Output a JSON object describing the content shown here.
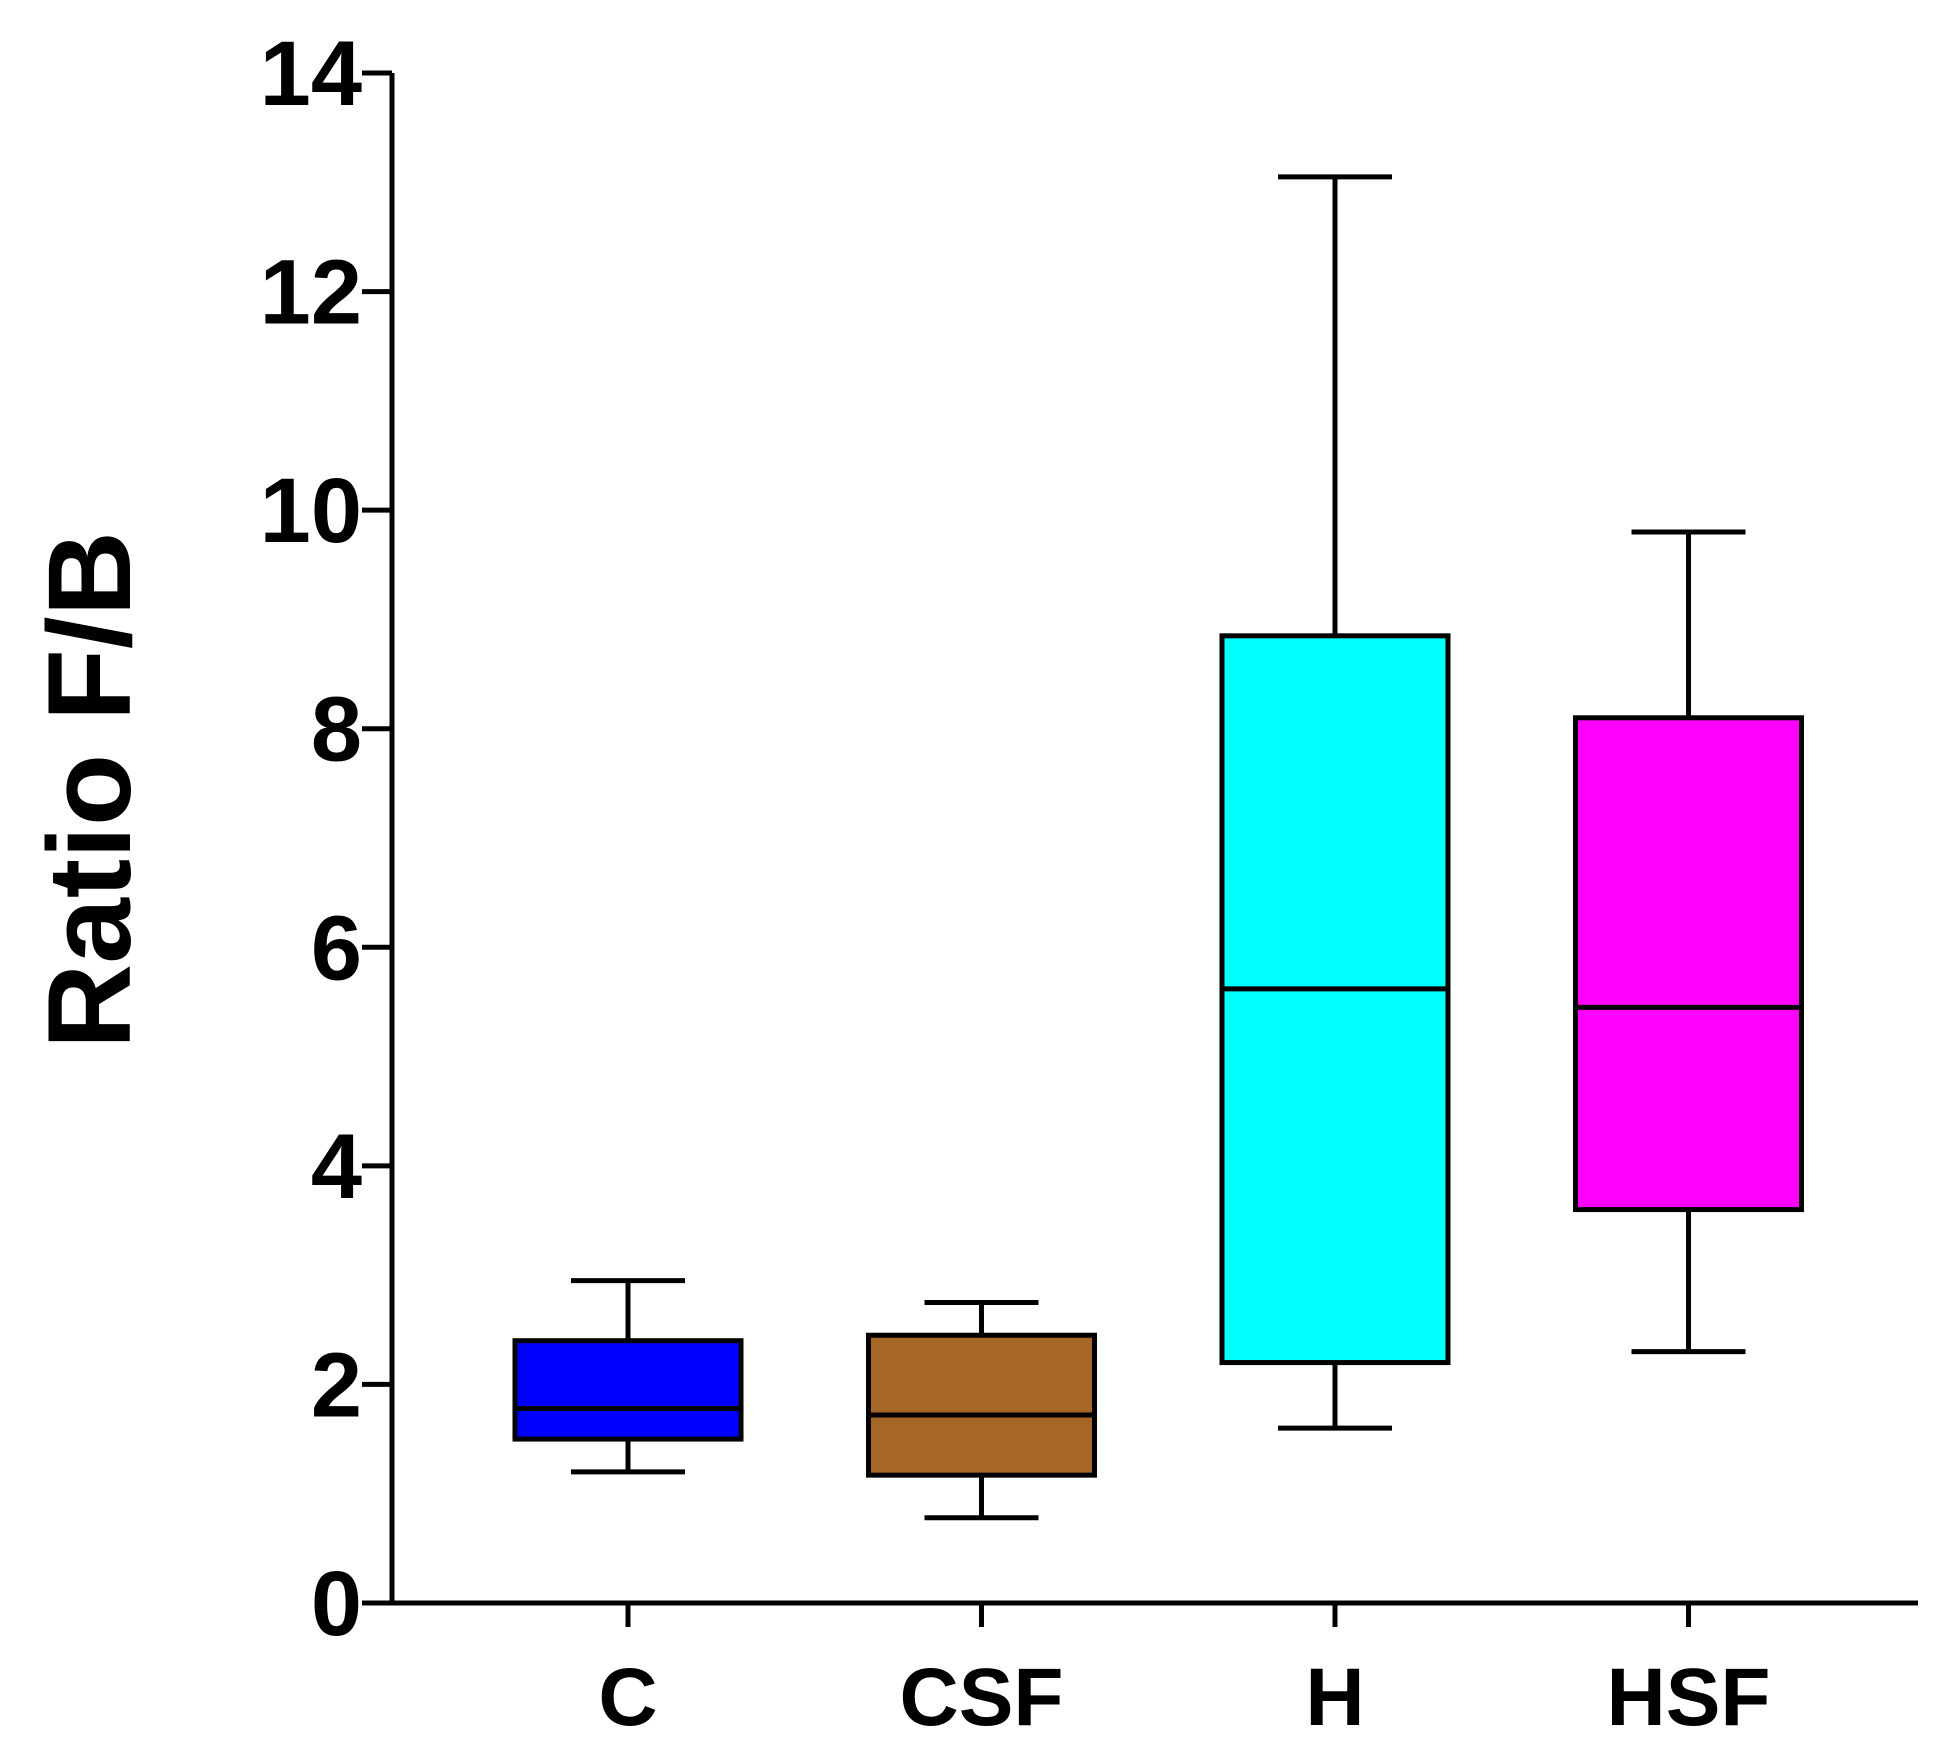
{
  "chart_data": {
    "type": "box",
    "title": "",
    "xlabel": "",
    "ylabel": "Ratio F/B",
    "ylim": [
      0,
      14
    ],
    "yticks": [
      0,
      2,
      4,
      6,
      8,
      10,
      12,
      14
    ],
    "grid": false,
    "legend": "none",
    "categories": [
      "C",
      "CSF",
      "H",
      "HSF"
    ],
    "series": [
      {
        "name": "C",
        "min": 1.2,
        "q1": 1.5,
        "median": 1.78,
        "q3": 2.4,
        "max": 2.95,
        "color": "#0000ff"
      },
      {
        "name": "CSF",
        "min": 0.78,
        "q1": 1.17,
        "median": 1.72,
        "q3": 2.45,
        "max": 2.75,
        "color": "#a66628"
      },
      {
        "name": "H",
        "min": 1.6,
        "q1": 2.2,
        "median": 5.62,
        "q3": 8.85,
        "max": 13.05,
        "color": "#00ffff"
      },
      {
        "name": "HSF",
        "min": 2.3,
        "q1": 3.6,
        "median": 5.45,
        "q3": 8.1,
        "max": 9.8,
        "color": "#ff00ff"
      }
    ]
  }
}
